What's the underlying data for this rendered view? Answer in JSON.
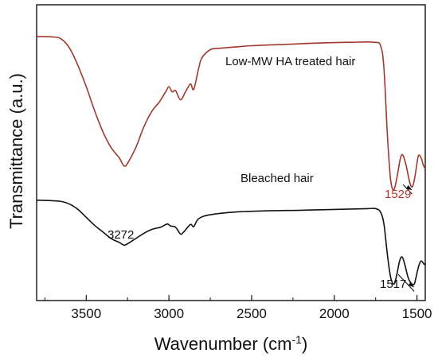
{
  "chart_data": {
    "type": "line",
    "xlabel": "Wavenumber (cm",
    "xlabel_sup": "-1",
    "xlabel_end": ")",
    "ylabel": "Transmittance (a.u.)",
    "xlim": [
      3800,
      1450
    ],
    "x_reversed": true,
    "xticks": [
      3500,
      3000,
      2500,
      2000,
      1500
    ],
    "xtick_labels": [
      "3500",
      "3000",
      "2500",
      "2000",
      "1500"
    ],
    "yticks_shown": false,
    "grid": false,
    "series": [
      {
        "name": "Low-MW HA treated hair",
        "color": "#a0392c",
        "points": [
          [
            3800,
            0.88
          ],
          [
            3700,
            0.878
          ],
          [
            3650,
            0.87
          ],
          [
            3600,
            0.835
          ],
          [
            3550,
            0.77
          ],
          [
            3500,
            0.69
          ],
          [
            3450,
            0.6
          ],
          [
            3400,
            0.52
          ],
          [
            3350,
            0.46
          ],
          [
            3300,
            0.42
          ],
          [
            3272,
            0.39
          ],
          [
            3250,
            0.4
          ],
          [
            3200,
            0.46
          ],
          [
            3150,
            0.54
          ],
          [
            3100,
            0.6
          ],
          [
            3060,
            0.63
          ],
          [
            3020,
            0.67
          ],
          [
            3000,
            0.69
          ],
          [
            2980,
            0.67
          ],
          [
            2960,
            0.675
          ],
          [
            2930,
            0.64
          ],
          [
            2900,
            0.67
          ],
          [
            2870,
            0.7
          ],
          [
            2850,
            0.68
          ],
          [
            2820,
            0.76
          ],
          [
            2800,
            0.8
          ],
          [
            2750,
            0.83
          ],
          [
            2700,
            0.835
          ],
          [
            2600,
            0.84
          ],
          [
            2500,
            0.845
          ],
          [
            2300,
            0.85
          ],
          [
            2100,
            0.855
          ],
          [
            1900,
            0.858
          ],
          [
            1760,
            0.858
          ],
          [
            1720,
            0.845
          ],
          [
            1700,
            0.76
          ],
          [
            1680,
            0.52
          ],
          [
            1660,
            0.34
          ],
          [
            1640,
            0.3
          ],
          [
            1620,
            0.35
          ],
          [
            1600,
            0.42
          ],
          [
            1585,
            0.43
          ],
          [
            1565,
            0.39
          ],
          [
            1545,
            0.33
          ],
          [
            1529,
            0.31
          ],
          [
            1515,
            0.34
          ],
          [
            1500,
            0.4
          ],
          [
            1490,
            0.43
          ],
          [
            1475,
            0.42
          ],
          [
            1460,
            0.39
          ],
          [
            1450,
            0.38
          ]
        ]
      },
      {
        "name": "Bleached hair",
        "color": "#111111",
        "points": [
          [
            3800,
            0.26
          ],
          [
            3700,
            0.258
          ],
          [
            3650,
            0.255
          ],
          [
            3600,
            0.245
          ],
          [
            3550,
            0.225
          ],
          [
            3500,
            0.195
          ],
          [
            3450,
            0.165
          ],
          [
            3400,
            0.14
          ],
          [
            3350,
            0.115
          ],
          [
            3300,
            0.1
          ],
          [
            3272,
            0.09
          ],
          [
            3250,
            0.095
          ],
          [
            3200,
            0.115
          ],
          [
            3150,
            0.135
          ],
          [
            3100,
            0.15
          ],
          [
            3050,
            0.158
          ],
          [
            3010,
            0.17
          ],
          [
            2990,
            0.162
          ],
          [
            2960,
            0.158
          ],
          [
            2930,
            0.132
          ],
          [
            2910,
            0.14
          ],
          [
            2870,
            0.168
          ],
          [
            2850,
            0.16
          ],
          [
            2820,
            0.19
          ],
          [
            2750,
            0.205
          ],
          [
            2600,
            0.215
          ],
          [
            2400,
            0.22
          ],
          [
            2200,
            0.222
          ],
          [
            2000,
            0.225
          ],
          [
            1800,
            0.228
          ],
          [
            1750,
            0.228
          ],
          [
            1720,
            0.215
          ],
          [
            1700,
            0.17
          ],
          [
            1680,
            0.06
          ],
          [
            1660,
            -0.03
          ],
          [
            1640,
            -0.058
          ],
          [
            1625,
            -0.03
          ],
          [
            1605,
            0.03
          ],
          [
            1590,
            0.045
          ],
          [
            1575,
            0.02
          ],
          [
            1555,
            -0.03
          ],
          [
            1535,
            -0.055
          ],
          [
            1517,
            -0.058
          ],
          [
            1505,
            -0.03
          ],
          [
            1490,
            0.01
          ],
          [
            1475,
            0.03
          ],
          [
            1460,
            0.02
          ],
          [
            1450,
            0.015
          ]
        ]
      }
    ],
    "annotations": {
      "ha_label": "Low-MW HA treated hair",
      "bleached_label": "Bleached hair",
      "peak_3272": "3272",
      "peak_1529": "1529",
      "peak_1529_color": "#b8302a",
      "peak_1517": "1517"
    }
  }
}
